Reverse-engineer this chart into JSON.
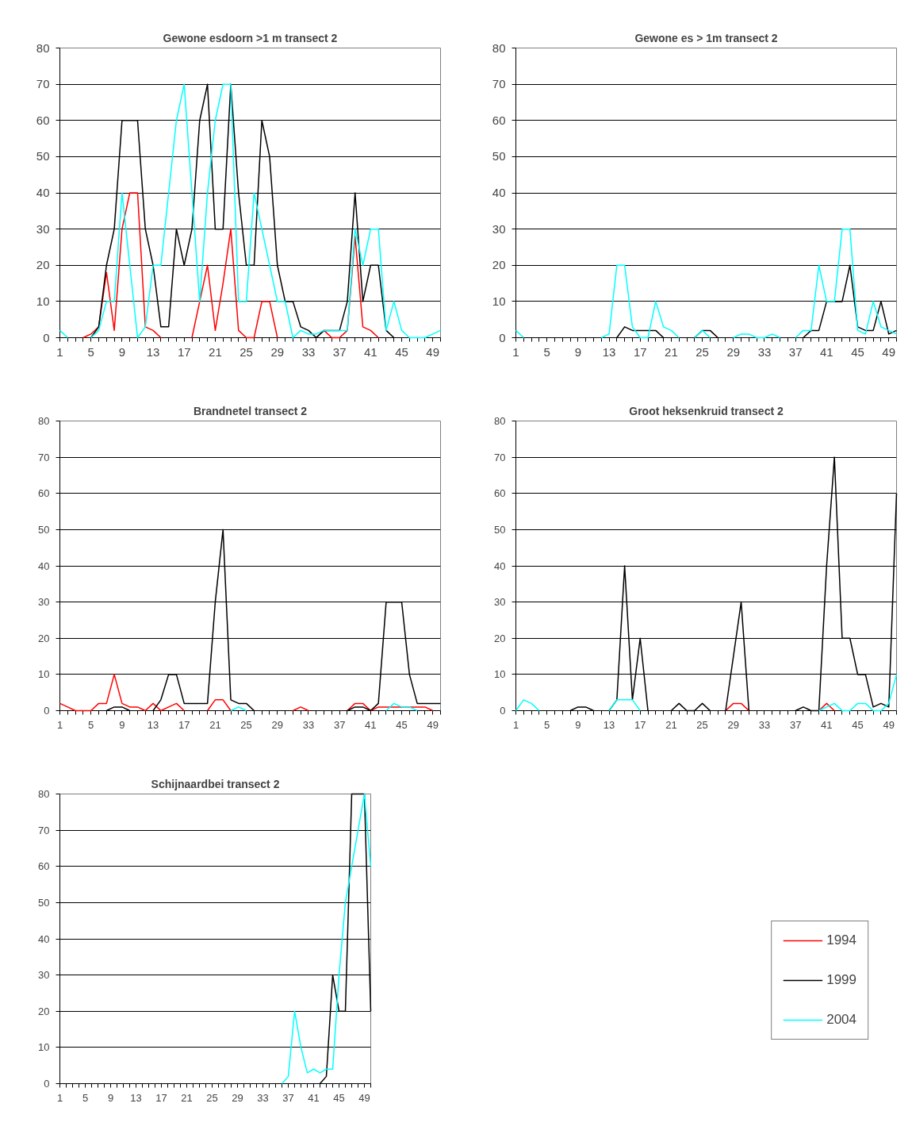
{
  "chart_data": [
    {
      "type": "line",
      "title": "Gewone esdoorn >1 m transect 2",
      "categories": [
        "1",
        null,
        null,
        null,
        "5",
        null,
        null,
        null,
        "9",
        null,
        null,
        null,
        "13",
        null,
        null,
        null,
        "17",
        null,
        null,
        null,
        "21",
        null,
        null,
        null,
        "25",
        null,
        null,
        null,
        "29",
        null,
        null,
        null,
        "33",
        null,
        null,
        null,
        "37",
        null,
        null,
        null,
        "41",
        null,
        null,
        null,
        "45",
        null,
        null,
        null,
        "49",
        null
      ],
      "ylim": [
        0,
        80
      ],
      "yticks": [
        0,
        10,
        20,
        30,
        40,
        50,
        60,
        70,
        80
      ],
      "grid": "y",
      "series": [
        {
          "color": "#ff0000",
          "values": [
            null,
            null,
            null,
            0,
            1,
            3,
            18,
            2,
            30,
            40,
            40,
            3,
            2,
            0,
            null,
            null,
            null,
            0,
            10,
            20,
            2,
            15,
            30,
            2,
            0,
            0,
            10,
            10,
            0,
            null,
            null,
            null,
            null,
            0,
            2,
            0,
            0,
            2,
            28,
            3,
            2,
            0,
            null,
            null,
            null,
            null,
            null,
            null,
            null,
            null
          ]
        },
        {
          "color": "#000000",
          "values": [
            null,
            null,
            null,
            null,
            0,
            3,
            20,
            30,
            60,
            60,
            60,
            30,
            20,
            3,
            3,
            30,
            20,
            30,
            60,
            70,
            30,
            30,
            70,
            40,
            20,
            20,
            60,
            50,
            20,
            10,
            10,
            3,
            2,
            0,
            2,
            2,
            2,
            10,
            40,
            10,
            20,
            20,
            2,
            0,
            null,
            null,
            null,
            null,
            null,
            null
          ]
        },
        {
          "color": "#00ffff",
          "values": [
            2,
            0,
            null,
            null,
            0,
            2,
            10,
            10,
            40,
            20,
            0,
            3,
            20,
            20,
            40,
            60,
            70,
            40,
            10,
            40,
            60,
            70,
            70,
            10,
            10,
            40,
            30,
            20,
            10,
            10,
            0,
            2,
            1,
            1,
            2,
            2,
            2,
            2,
            30,
            20,
            30,
            30,
            2,
            10,
            2,
            0,
            0,
            0,
            1,
            2
          ]
        }
      ]
    },
    {
      "type": "line",
      "title": "Gewone es > 1m transect 2",
      "categories": [
        "1",
        null,
        null,
        null,
        "5",
        null,
        null,
        null,
        "9",
        null,
        null,
        null,
        "13",
        null,
        null,
        null,
        "17",
        null,
        null,
        null,
        "21",
        null,
        null,
        null,
        "25",
        null,
        null,
        null,
        "29",
        null,
        null,
        null,
        "33",
        null,
        null,
        null,
        "37",
        null,
        null,
        null,
        "41",
        null,
        null,
        null,
        "45",
        null,
        null,
        null,
        "49",
        null
      ],
      "ylim": [
        0,
        80
      ],
      "yticks": [
        0,
        10,
        20,
        30,
        40,
        50,
        60,
        70,
        80
      ],
      "grid": "y",
      "series": [
        {
          "color": "#000000",
          "values": [
            null,
            null,
            null,
            null,
            null,
            null,
            null,
            null,
            null,
            null,
            null,
            null,
            null,
            0,
            3,
            2,
            2,
            2,
            2,
            0,
            null,
            null,
            null,
            0,
            2,
            2,
            0,
            null,
            null,
            null,
            null,
            null,
            null,
            null,
            null,
            null,
            null,
            0,
            2,
            2,
            10,
            10,
            10,
            20,
            3,
            2,
            2,
            10,
            1,
            2
          ]
        },
        {
          "color": "#00ffff",
          "values": [
            2,
            0,
            null,
            null,
            null,
            null,
            null,
            null,
            null,
            null,
            null,
            0,
            1,
            20,
            20,
            3,
            0,
            0,
            10,
            3,
            2,
            0,
            null,
            0,
            2,
            0,
            null,
            null,
            0,
            1,
            1,
            0,
            0,
            1,
            0,
            null,
            0,
            2,
            2,
            20,
            10,
            10,
            30,
            30,
            2,
            1,
            10,
            3,
            2,
            1
          ]
        }
      ]
    },
    {
      "type": "line",
      "title": "Brandnetel transect 2",
      "categories": [
        "1",
        null,
        null,
        null,
        "5",
        null,
        null,
        null,
        "9",
        null,
        null,
        null,
        "13",
        null,
        null,
        null,
        "17",
        null,
        null,
        null,
        "21",
        null,
        null,
        null,
        "25",
        null,
        null,
        null,
        "29",
        null,
        null,
        null,
        "33",
        null,
        null,
        null,
        "37",
        null,
        null,
        null,
        "41",
        null,
        null,
        null,
        "45",
        null,
        null,
        null,
        "49",
        null
      ],
      "ylim": [
        0,
        80
      ],
      "yticks": [
        0,
        10,
        20,
        30,
        40,
        50,
        60,
        70,
        80
      ],
      "grid": "y",
      "series": [
        {
          "color": "#ff0000",
          "values": [
            2,
            1,
            0,
            0,
            0,
            2,
            2,
            10,
            2,
            1,
            1,
            0,
            2,
            0,
            1,
            2,
            0,
            null,
            null,
            0,
            3,
            3,
            0,
            null,
            null,
            null,
            null,
            null,
            null,
            null,
            0,
            1,
            0,
            null,
            null,
            null,
            null,
            0,
            2,
            2,
            0,
            1,
            1,
            1,
            1,
            1,
            1,
            1,
            0,
            null
          ]
        },
        {
          "color": "#000000",
          "values": [
            null,
            null,
            null,
            null,
            null,
            null,
            0,
            1,
            1,
            0,
            null,
            null,
            0,
            3,
            10,
            10,
            2,
            2,
            2,
            2,
            30,
            50,
            3,
            2,
            2,
            0,
            null,
            null,
            null,
            null,
            null,
            null,
            null,
            null,
            null,
            null,
            null,
            0,
            1,
            1,
            0,
            2,
            30,
            30,
            30,
            10,
            2,
            2,
            2,
            2
          ]
        },
        {
          "color": "#00ffff",
          "values": [
            null,
            null,
            null,
            null,
            null,
            null,
            null,
            null,
            null,
            null,
            null,
            null,
            null,
            null,
            null,
            null,
            null,
            null,
            null,
            null,
            null,
            null,
            0,
            1,
            0,
            null,
            null,
            null,
            null,
            null,
            null,
            null,
            null,
            null,
            null,
            null,
            null,
            null,
            null,
            null,
            null,
            null,
            0,
            2,
            1,
            1,
            0,
            null,
            null,
            null
          ]
        }
      ]
    },
    {
      "type": "line",
      "title": "Groot heksenkruid transect 2",
      "categories": [
        "1",
        null,
        null,
        null,
        "5",
        null,
        null,
        null,
        "9",
        null,
        null,
        null,
        "13",
        null,
        null,
        null,
        "17",
        null,
        null,
        null,
        "21",
        null,
        null,
        null,
        "25",
        null,
        null,
        null,
        "29",
        null,
        null,
        null,
        "33",
        null,
        null,
        null,
        "37",
        null,
        null,
        null,
        "41",
        null,
        null,
        null,
        "45",
        null,
        null,
        null,
        "49",
        null
      ],
      "ylim": [
        0,
        80
      ],
      "yticks": [
        0,
        10,
        20,
        30,
        40,
        50,
        60,
        70,
        80
      ],
      "grid": "y",
      "series": [
        {
          "color": "#ff0000",
          "values": [
            null,
            null,
            null,
            null,
            null,
            null,
            null,
            null,
            null,
            null,
            null,
            null,
            null,
            null,
            null,
            null,
            null,
            null,
            null,
            null,
            null,
            null,
            null,
            null,
            null,
            null,
            null,
            0,
            2,
            2,
            0,
            null,
            null,
            null,
            null,
            null,
            null,
            null,
            null,
            0,
            2,
            0,
            null,
            null,
            null,
            null,
            null,
            null,
            null,
            null
          ]
        },
        {
          "color": "#000000",
          "values": [
            null,
            null,
            null,
            null,
            null,
            null,
            null,
            0,
            1,
            1,
            0,
            null,
            0,
            3,
            40,
            3,
            20,
            0,
            null,
            null,
            0,
            2,
            0,
            0,
            2,
            0,
            null,
            0,
            15,
            30,
            0,
            null,
            null,
            null,
            null,
            null,
            0,
            1,
            0,
            0,
            40,
            70,
            20,
            20,
            10,
            10,
            1,
            2,
            1,
            60
          ]
        },
        {
          "color": "#00ffff",
          "values": [
            0,
            3,
            2,
            0,
            null,
            null,
            null,
            null,
            null,
            null,
            null,
            null,
            0,
            3,
            3,
            3,
            0,
            null,
            null,
            null,
            null,
            null,
            null,
            null,
            null,
            null,
            null,
            null,
            null,
            null,
            null,
            null,
            null,
            null,
            null,
            null,
            null,
            null,
            null,
            0,
            1,
            2,
            0,
            0,
            2,
            2,
            0,
            0,
            2,
            10
          ]
        }
      ]
    },
    {
      "type": "line",
      "title": "Schijnaardbei transect 2",
      "categories": [
        "1",
        null,
        null,
        null,
        "5",
        null,
        null,
        null,
        "9",
        null,
        null,
        null,
        "13",
        null,
        null,
        null,
        "17",
        null,
        null,
        null,
        "21",
        null,
        null,
        null,
        "25",
        null,
        null,
        null,
        "29",
        null,
        null,
        null,
        "33",
        null,
        null,
        null,
        "37",
        null,
        null,
        null,
        "41",
        null,
        null,
        null,
        "45",
        null,
        null,
        null,
        "49",
        null
      ],
      "ylim": [
        0,
        80
      ],
      "yticks": [
        0,
        10,
        20,
        30,
        40,
        50,
        60,
        70,
        80
      ],
      "grid": "y",
      "legend": "right",
      "series": [
        {
          "name": "1994",
          "color": "#ff0000",
          "values": [
            null,
            null,
            null,
            null,
            null,
            null,
            null,
            null,
            null,
            null,
            null,
            null,
            null,
            null,
            null,
            null,
            null,
            null,
            null,
            null,
            null,
            null,
            null,
            null,
            null,
            null,
            null,
            null,
            null,
            null,
            null,
            null,
            null,
            null,
            null,
            null,
            null,
            null,
            null,
            null,
            null,
            null,
            null,
            null,
            null,
            null,
            null,
            null,
            null,
            null
          ]
        },
        {
          "name": "1999",
          "color": "#000000",
          "values": [
            null,
            null,
            null,
            null,
            null,
            null,
            null,
            null,
            null,
            null,
            null,
            null,
            null,
            null,
            null,
            null,
            null,
            null,
            null,
            null,
            null,
            null,
            null,
            null,
            null,
            null,
            null,
            null,
            null,
            null,
            null,
            null,
            null,
            null,
            null,
            null,
            null,
            null,
            null,
            null,
            null,
            0,
            2,
            30,
            20,
            20,
            80,
            80,
            80,
            20
          ]
        },
        {
          "name": "2004",
          "color": "#00ffff",
          "values": [
            null,
            null,
            null,
            null,
            null,
            null,
            null,
            null,
            null,
            null,
            null,
            null,
            null,
            null,
            null,
            null,
            null,
            null,
            null,
            null,
            null,
            null,
            null,
            null,
            null,
            null,
            null,
            null,
            null,
            null,
            null,
            null,
            null,
            null,
            null,
            0,
            2,
            20,
            10,
            3,
            4,
            3,
            4,
            4,
            30,
            50,
            60,
            70,
            80,
            60
          ]
        }
      ]
    }
  ]
}
